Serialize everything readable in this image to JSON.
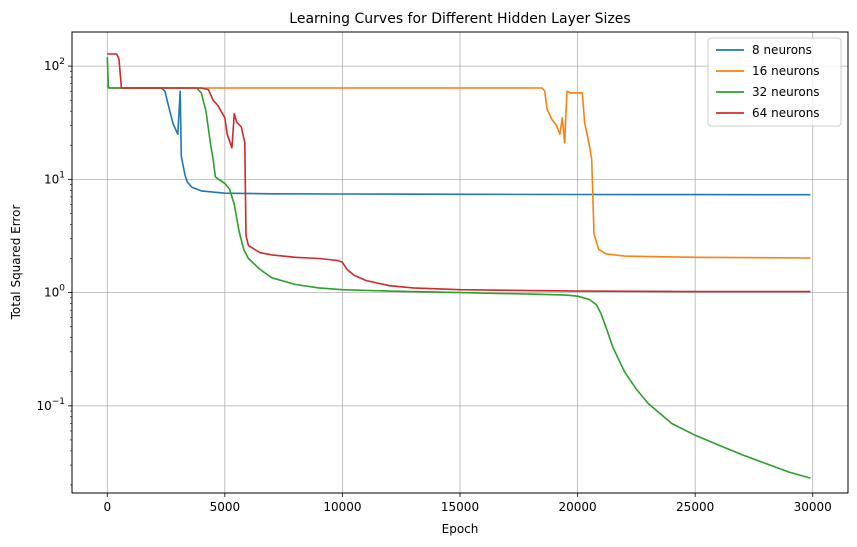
{
  "chart_data": {
    "type": "line",
    "title": "Learning Curves for Different Hidden Layer Sizes",
    "xlabel": "Epoch",
    "ylabel": "Total Squared Error",
    "xlim": [
      -1500,
      31500
    ],
    "ylim": [
      0.017,
      200
    ],
    "yscale": "log",
    "grid": true,
    "legend_position": "top-right",
    "x_ticks": [
      0,
      5000,
      10000,
      15000,
      20000,
      25000,
      30000
    ],
    "x_tick_labels": [
      "0",
      "5000",
      "10000",
      "15000",
      "20000",
      "25000",
      "30000"
    ],
    "y_ticks": [
      0.1,
      1,
      10,
      100
    ],
    "y_tick_labels": [
      {
        "base": "10",
        "exp": "−1"
      },
      {
        "base": "10",
        "exp": "0"
      },
      {
        "base": "10",
        "exp": "1"
      },
      {
        "base": "10",
        "exp": "2"
      }
    ],
    "series": [
      {
        "name": "8 neurons",
        "color": "#1f77b4",
        "points": [
          [
            0,
            68
          ],
          [
            100,
            64
          ],
          [
            500,
            64
          ],
          [
            1000,
            64
          ],
          [
            1500,
            64
          ],
          [
            2000,
            64
          ],
          [
            2300,
            64
          ],
          [
            2450,
            60
          ],
          [
            2600,
            45
          ],
          [
            2800,
            31
          ],
          [
            3000,
            25
          ],
          [
            3100,
            60
          ],
          [
            3150,
            16
          ],
          [
            3300,
            11
          ],
          [
            3400,
            9.5
          ],
          [
            3600,
            8.5
          ],
          [
            4000,
            7.9
          ],
          [
            5000,
            7.55
          ],
          [
            7000,
            7.45
          ],
          [
            10000,
            7.42
          ],
          [
            15000,
            7.38
          ],
          [
            20000,
            7.35
          ],
          [
            25000,
            7.33
          ],
          [
            29900,
            7.32
          ]
        ]
      },
      {
        "name": "16 neurons",
        "color": "#ff7f0e",
        "points": [
          [
            0,
            68
          ],
          [
            100,
            64
          ],
          [
            500,
            64
          ],
          [
            5000,
            64
          ],
          [
            10000,
            64
          ],
          [
            15000,
            64
          ],
          [
            18000,
            64
          ],
          [
            18500,
            64
          ],
          [
            18600,
            60
          ],
          [
            18700,
            42
          ],
          [
            18900,
            34
          ],
          [
            19100,
            30
          ],
          [
            19250,
            25
          ],
          [
            19350,
            35
          ],
          [
            19450,
            21
          ],
          [
            19550,
            60
          ],
          [
            19700,
            58
          ],
          [
            20000,
            58
          ],
          [
            20200,
            58
          ],
          [
            20300,
            32
          ],
          [
            20500,
            20
          ],
          [
            20600,
            15
          ],
          [
            20700,
            3.3
          ],
          [
            20900,
            2.4
          ],
          [
            21200,
            2.2
          ],
          [
            22000,
            2.1
          ],
          [
            25000,
            2.05
          ],
          [
            29900,
            2.02
          ]
        ]
      },
      {
        "name": "32 neurons",
        "color": "#2ca02c",
        "points": [
          [
            0,
            120
          ],
          [
            50,
            64
          ],
          [
            500,
            64
          ],
          [
            1000,
            64
          ],
          [
            2000,
            64
          ],
          [
            3000,
            64
          ],
          [
            3800,
            64
          ],
          [
            4000,
            58
          ],
          [
            4200,
            40
          ],
          [
            4400,
            20
          ],
          [
            4500,
            15
          ],
          [
            4600,
            10.5
          ],
          [
            4800,
            9.8
          ],
          [
            5000,
            9.2
          ],
          [
            5200,
            8.2
          ],
          [
            5400,
            6.0
          ],
          [
            5600,
            3.5
          ],
          [
            5800,
            2.4
          ],
          [
            6000,
            2.0
          ],
          [
            6500,
            1.6
          ],
          [
            7000,
            1.35
          ],
          [
            8000,
            1.18
          ],
          [
            9000,
            1.1
          ],
          [
            10000,
            1.06
          ],
          [
            12000,
            1.03
          ],
          [
            15000,
            1.0
          ],
          [
            18000,
            0.97
          ],
          [
            19500,
            0.95
          ],
          [
            20000,
            0.93
          ],
          [
            20500,
            0.87
          ],
          [
            20800,
            0.78
          ],
          [
            21000,
            0.65
          ],
          [
            21200,
            0.5
          ],
          [
            21500,
            0.33
          ],
          [
            22000,
            0.2
          ],
          [
            22500,
            0.14
          ],
          [
            23000,
            0.105
          ],
          [
            24000,
            0.07
          ],
          [
            25000,
            0.055
          ],
          [
            26000,
            0.045
          ],
          [
            27000,
            0.037
          ],
          [
            28000,
            0.031
          ],
          [
            29000,
            0.026
          ],
          [
            29900,
            0.023
          ]
        ]
      },
      {
        "name": "64 neurons",
        "color": "#d62728",
        "points": [
          [
            0,
            128
          ],
          [
            200,
            128
          ],
          [
            400,
            128
          ],
          [
            500,
            115
          ],
          [
            600,
            64
          ],
          [
            1000,
            64
          ],
          [
            2000,
            64
          ],
          [
            3000,
            64
          ],
          [
            4000,
            64
          ],
          [
            4300,
            62
          ],
          [
            4500,
            50
          ],
          [
            4700,
            45
          ],
          [
            4900,
            38
          ],
          [
            5000,
            35
          ],
          [
            5100,
            25
          ],
          [
            5300,
            19
          ],
          [
            5400,
            38
          ],
          [
            5500,
            32
          ],
          [
            5700,
            29
          ],
          [
            5850,
            21
          ],
          [
            5900,
            3.2
          ],
          [
            6000,
            2.6
          ],
          [
            6500,
            2.25
          ],
          [
            7000,
            2.15
          ],
          [
            8000,
            2.05
          ],
          [
            9000,
            2.0
          ],
          [
            9800,
            1.92
          ],
          [
            10000,
            1.85
          ],
          [
            10200,
            1.6
          ],
          [
            10500,
            1.42
          ],
          [
            11000,
            1.28
          ],
          [
            12000,
            1.15
          ],
          [
            13000,
            1.1
          ],
          [
            15000,
            1.06
          ],
          [
            20000,
            1.03
          ],
          [
            25000,
            1.02
          ],
          [
            29900,
            1.02
          ]
        ]
      }
    ]
  }
}
